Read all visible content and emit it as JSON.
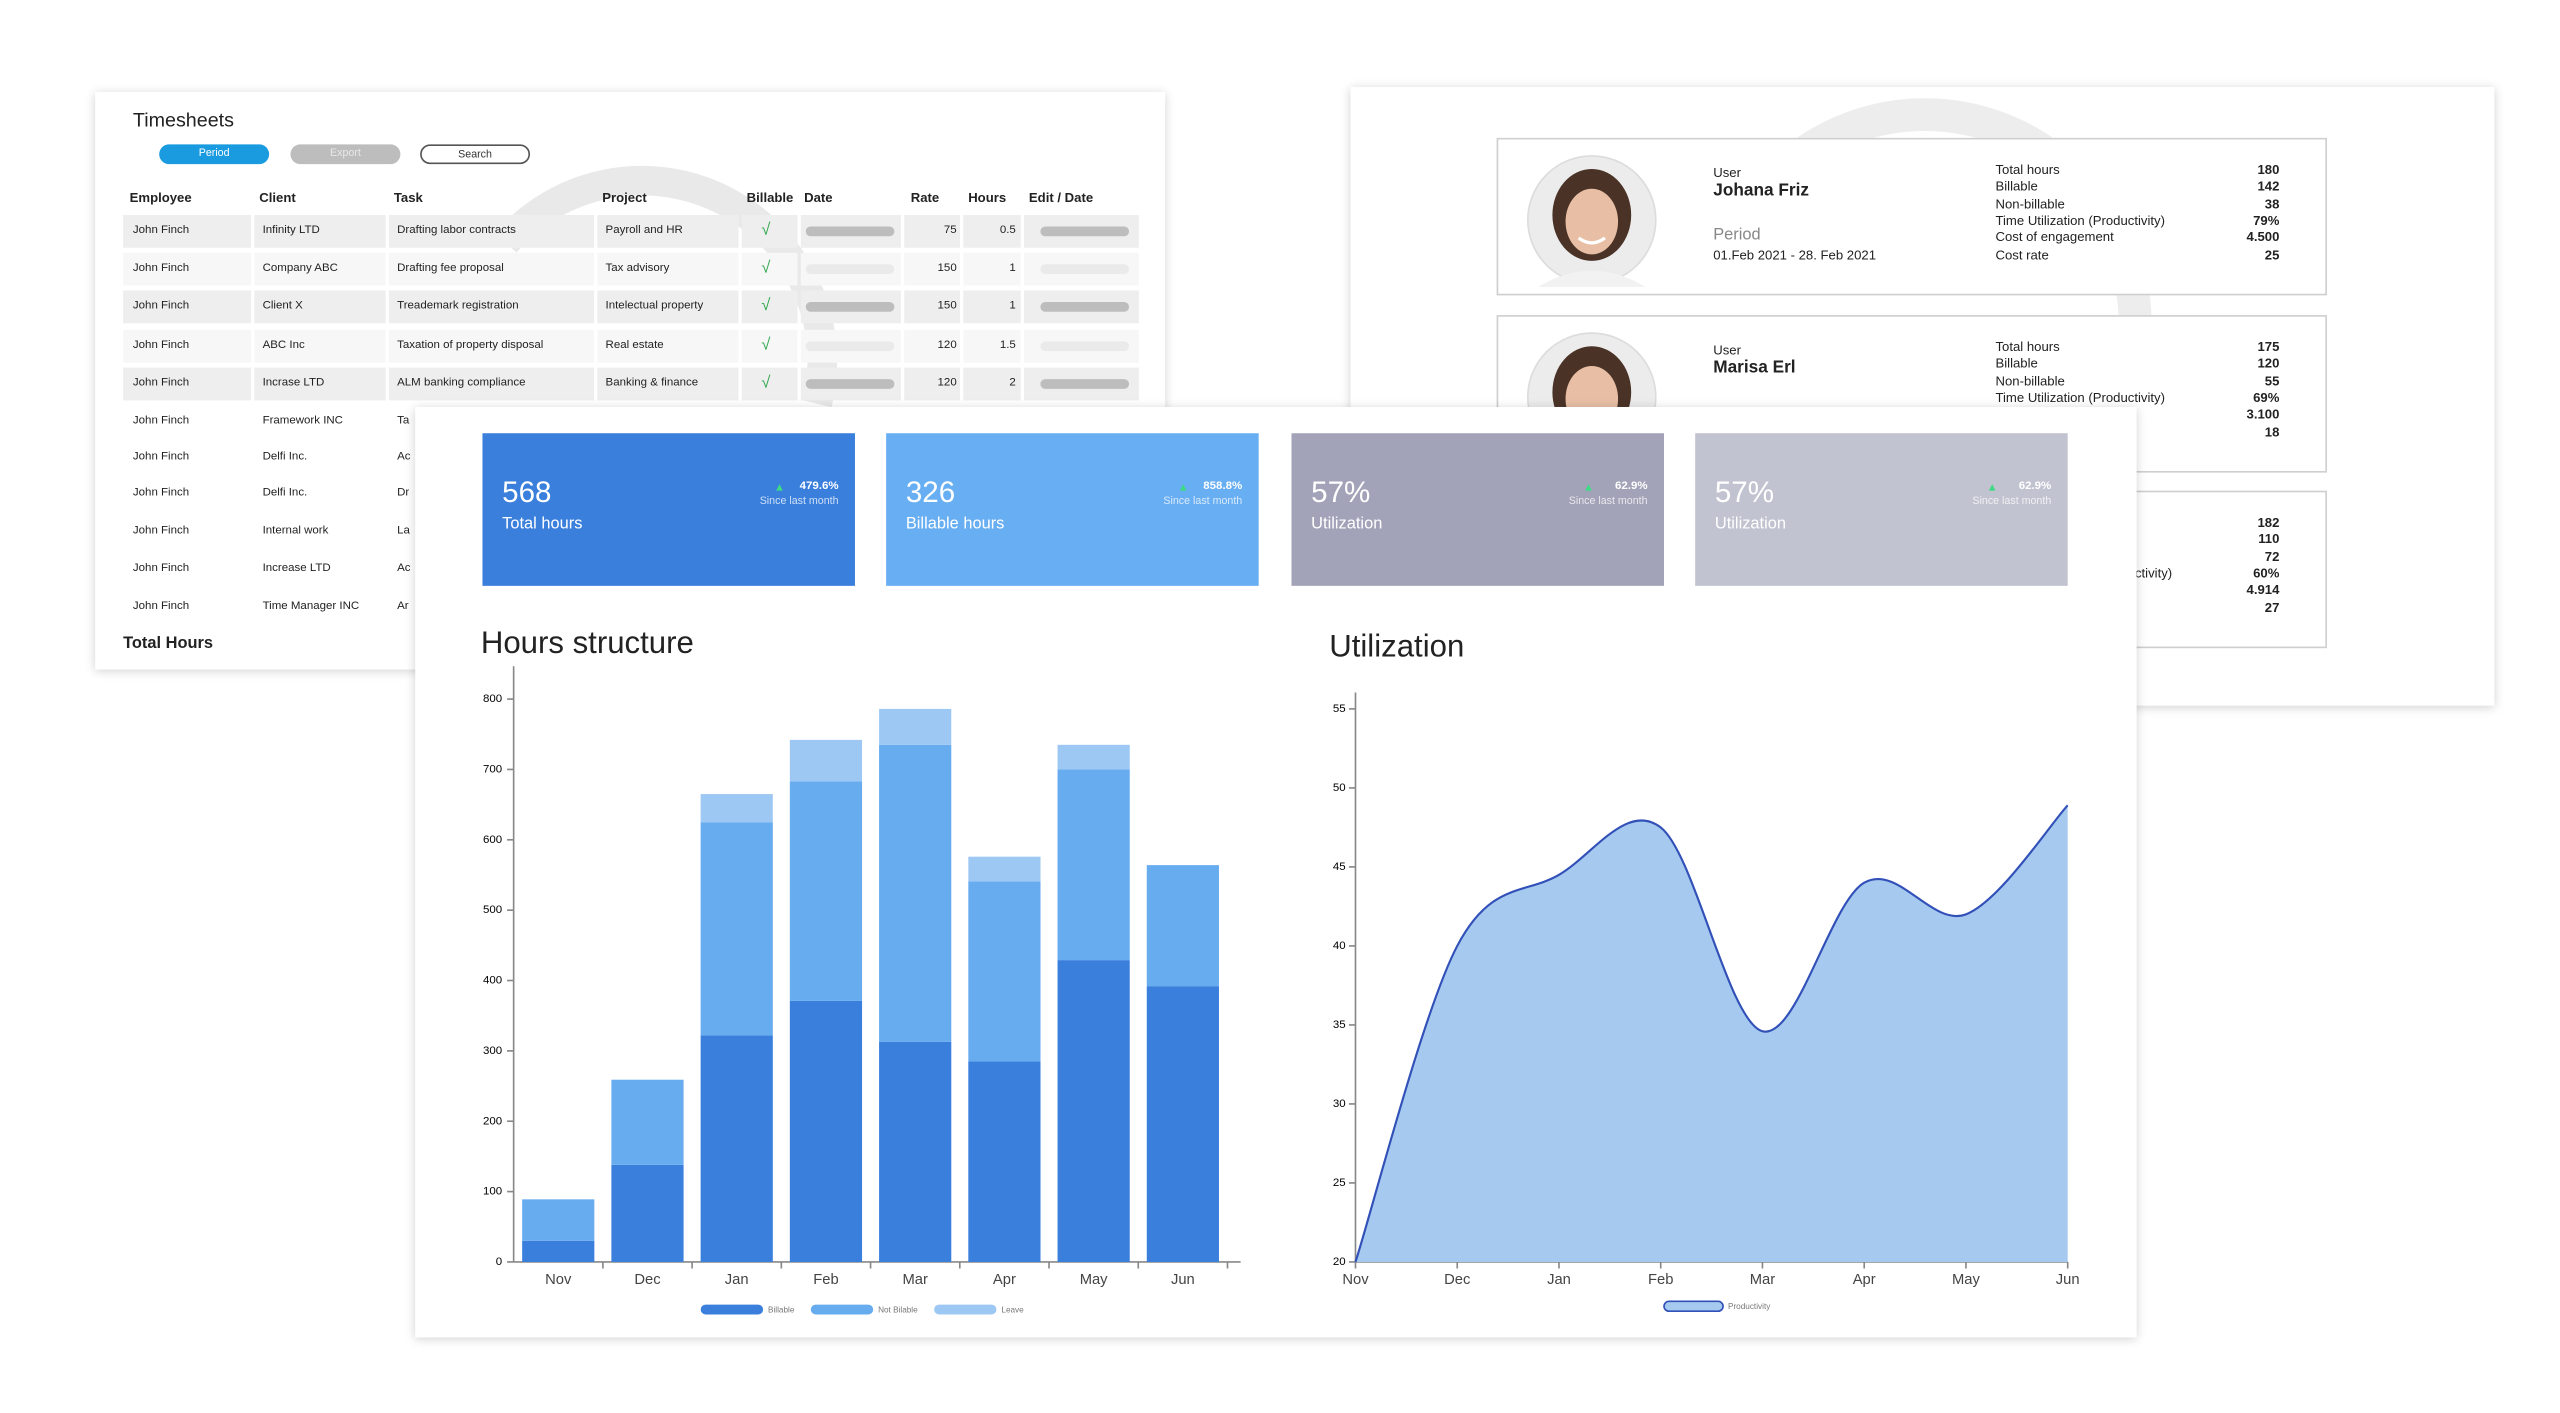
{
  "timesheets": {
    "title": "Timesheets",
    "buttons": [
      "Period",
      "Export",
      "Search"
    ],
    "columns": [
      "Employee",
      "Client",
      "Task",
      "Project",
      "Billable",
      "Date",
      "Rate",
      "Hours",
      "Edit / Date"
    ],
    "rows": [
      [
        "John Finch",
        "Infinity LTD",
        "Drafting labor contracts",
        "Payroll and HR",
        "√",
        75,
        0.5
      ],
      [
        "John Finch",
        "Company ABC",
        "Drafting fee proposal",
        "Tax advisory",
        "√",
        150,
        1
      ],
      [
        "John Finch",
        "Client X",
        "Treademark registration",
        "Intelectual property",
        "√",
        150,
        1
      ],
      [
        "John Finch",
        "ABC Inc",
        "Taxation of property disposal",
        "Real estate",
        "√",
        120,
        1.5
      ],
      [
        "John Finch",
        "Incrase LTD",
        "ALM banking compliance",
        "Banking & finance",
        "√",
        120,
        2
      ],
      [
        "John Finch",
        "Framework INC",
        "Ta"
      ],
      [
        "John Finch",
        "Delfi Inc.",
        "Ac"
      ],
      [
        "John Finch",
        "Delfi Inc.",
        "Dr"
      ],
      [
        "John Finch",
        "Internal work",
        "La"
      ],
      [
        "John Finch",
        "Increase LTD",
        "Ac"
      ],
      [
        "John Finch",
        "Time Manager INC",
        "Ar"
      ]
    ],
    "total_label": "Total Hours"
  },
  "users": [
    {
      "user_label": "User",
      "name": "Johana Friz",
      "period_label": "Period",
      "period": "01.Feb 2021 - 28. Feb 2021",
      "stat_labels": [
        "Total hours",
        "Billable",
        "Non-billable",
        "Time Utilization (Productivity)",
        "Cost of engagement",
        "Cost rate"
      ],
      "stat_values": [
        "180",
        "142",
        "38",
        "79%",
        "4.500",
        "25"
      ]
    },
    {
      "user_label": "User",
      "name": "Marisa Erl",
      "stat_labels": [
        "Total hours",
        "Billable",
        "Non-billable",
        "Time Utilization (Productivity)"
      ],
      "stat_values": [
        "175",
        "120",
        "55",
        "69%",
        "3.100",
        "18"
      ]
    },
    {
      "stat_labels": [
        "ctivity)"
      ],
      "stat_values": [
        "182",
        "110",
        "72",
        "60%",
        "4.914",
        "27"
      ]
    }
  ],
  "kpis": [
    {
      "value": "568",
      "label": "Total hours",
      "change": "479.6%",
      "note": "Since last month",
      "color": "#3a7fdc"
    },
    {
      "value": "326",
      "label": "Billable hours",
      "change": "858.8%",
      "note": "Since last month",
      "color": "#68aef2"
    },
    {
      "value": "57%",
      "label": "Utilization",
      "change": "62.9%",
      "note": "Since last month",
      "color": "#a2a3b8"
    },
    {
      "value": "57%",
      "label": "Utilization",
      "change": "62.9%",
      "note": "Since last month",
      "color": "#c2c3d0"
    }
  ],
  "chart_data": [
    {
      "type": "bar",
      "stacked": true,
      "title": "Hours structure",
      "categories": [
        "Nov",
        "Dec",
        "Jan",
        "Feb",
        "Mar",
        "Apr",
        "May",
        "Jun"
      ],
      "series": [
        {
          "name": "Billable",
          "color": "#3a7fdc",
          "values": [
            30,
            138,
            322,
            371,
            313,
            285,
            429,
            392
          ]
        },
        {
          "name": "Not Bilable",
          "color": "#68acf0",
          "values": [
            59,
            121,
            303,
            312,
            422,
            256,
            271,
            172
          ]
        },
        {
          "name": "Leave",
          "color": "#9ec8f4",
          "values": [
            0,
            0,
            40,
            59,
            51,
            35,
            35,
            0
          ]
        }
      ],
      "ylim": [
        0,
        800
      ],
      "yticks": [
        0,
        100,
        200,
        300,
        400,
        500,
        600,
        700,
        800
      ]
    },
    {
      "type": "area",
      "title": "Utilization",
      "categories": [
        "Nov",
        "Dec",
        "Jan",
        "Feb",
        "Mar",
        "Apr",
        "May",
        "Jun"
      ],
      "series": [
        {
          "name": "Productivity",
          "color": "#a6c9ef",
          "line_color": "#3150b8",
          "values": [
            20,
            40,
            44.5,
            47.5,
            34.6,
            44,
            42,
            48.9
          ]
        }
      ],
      "ylim": [
        20,
        55
      ],
      "yticks": [
        20,
        25,
        30,
        35,
        40,
        45,
        50,
        55
      ]
    }
  ]
}
